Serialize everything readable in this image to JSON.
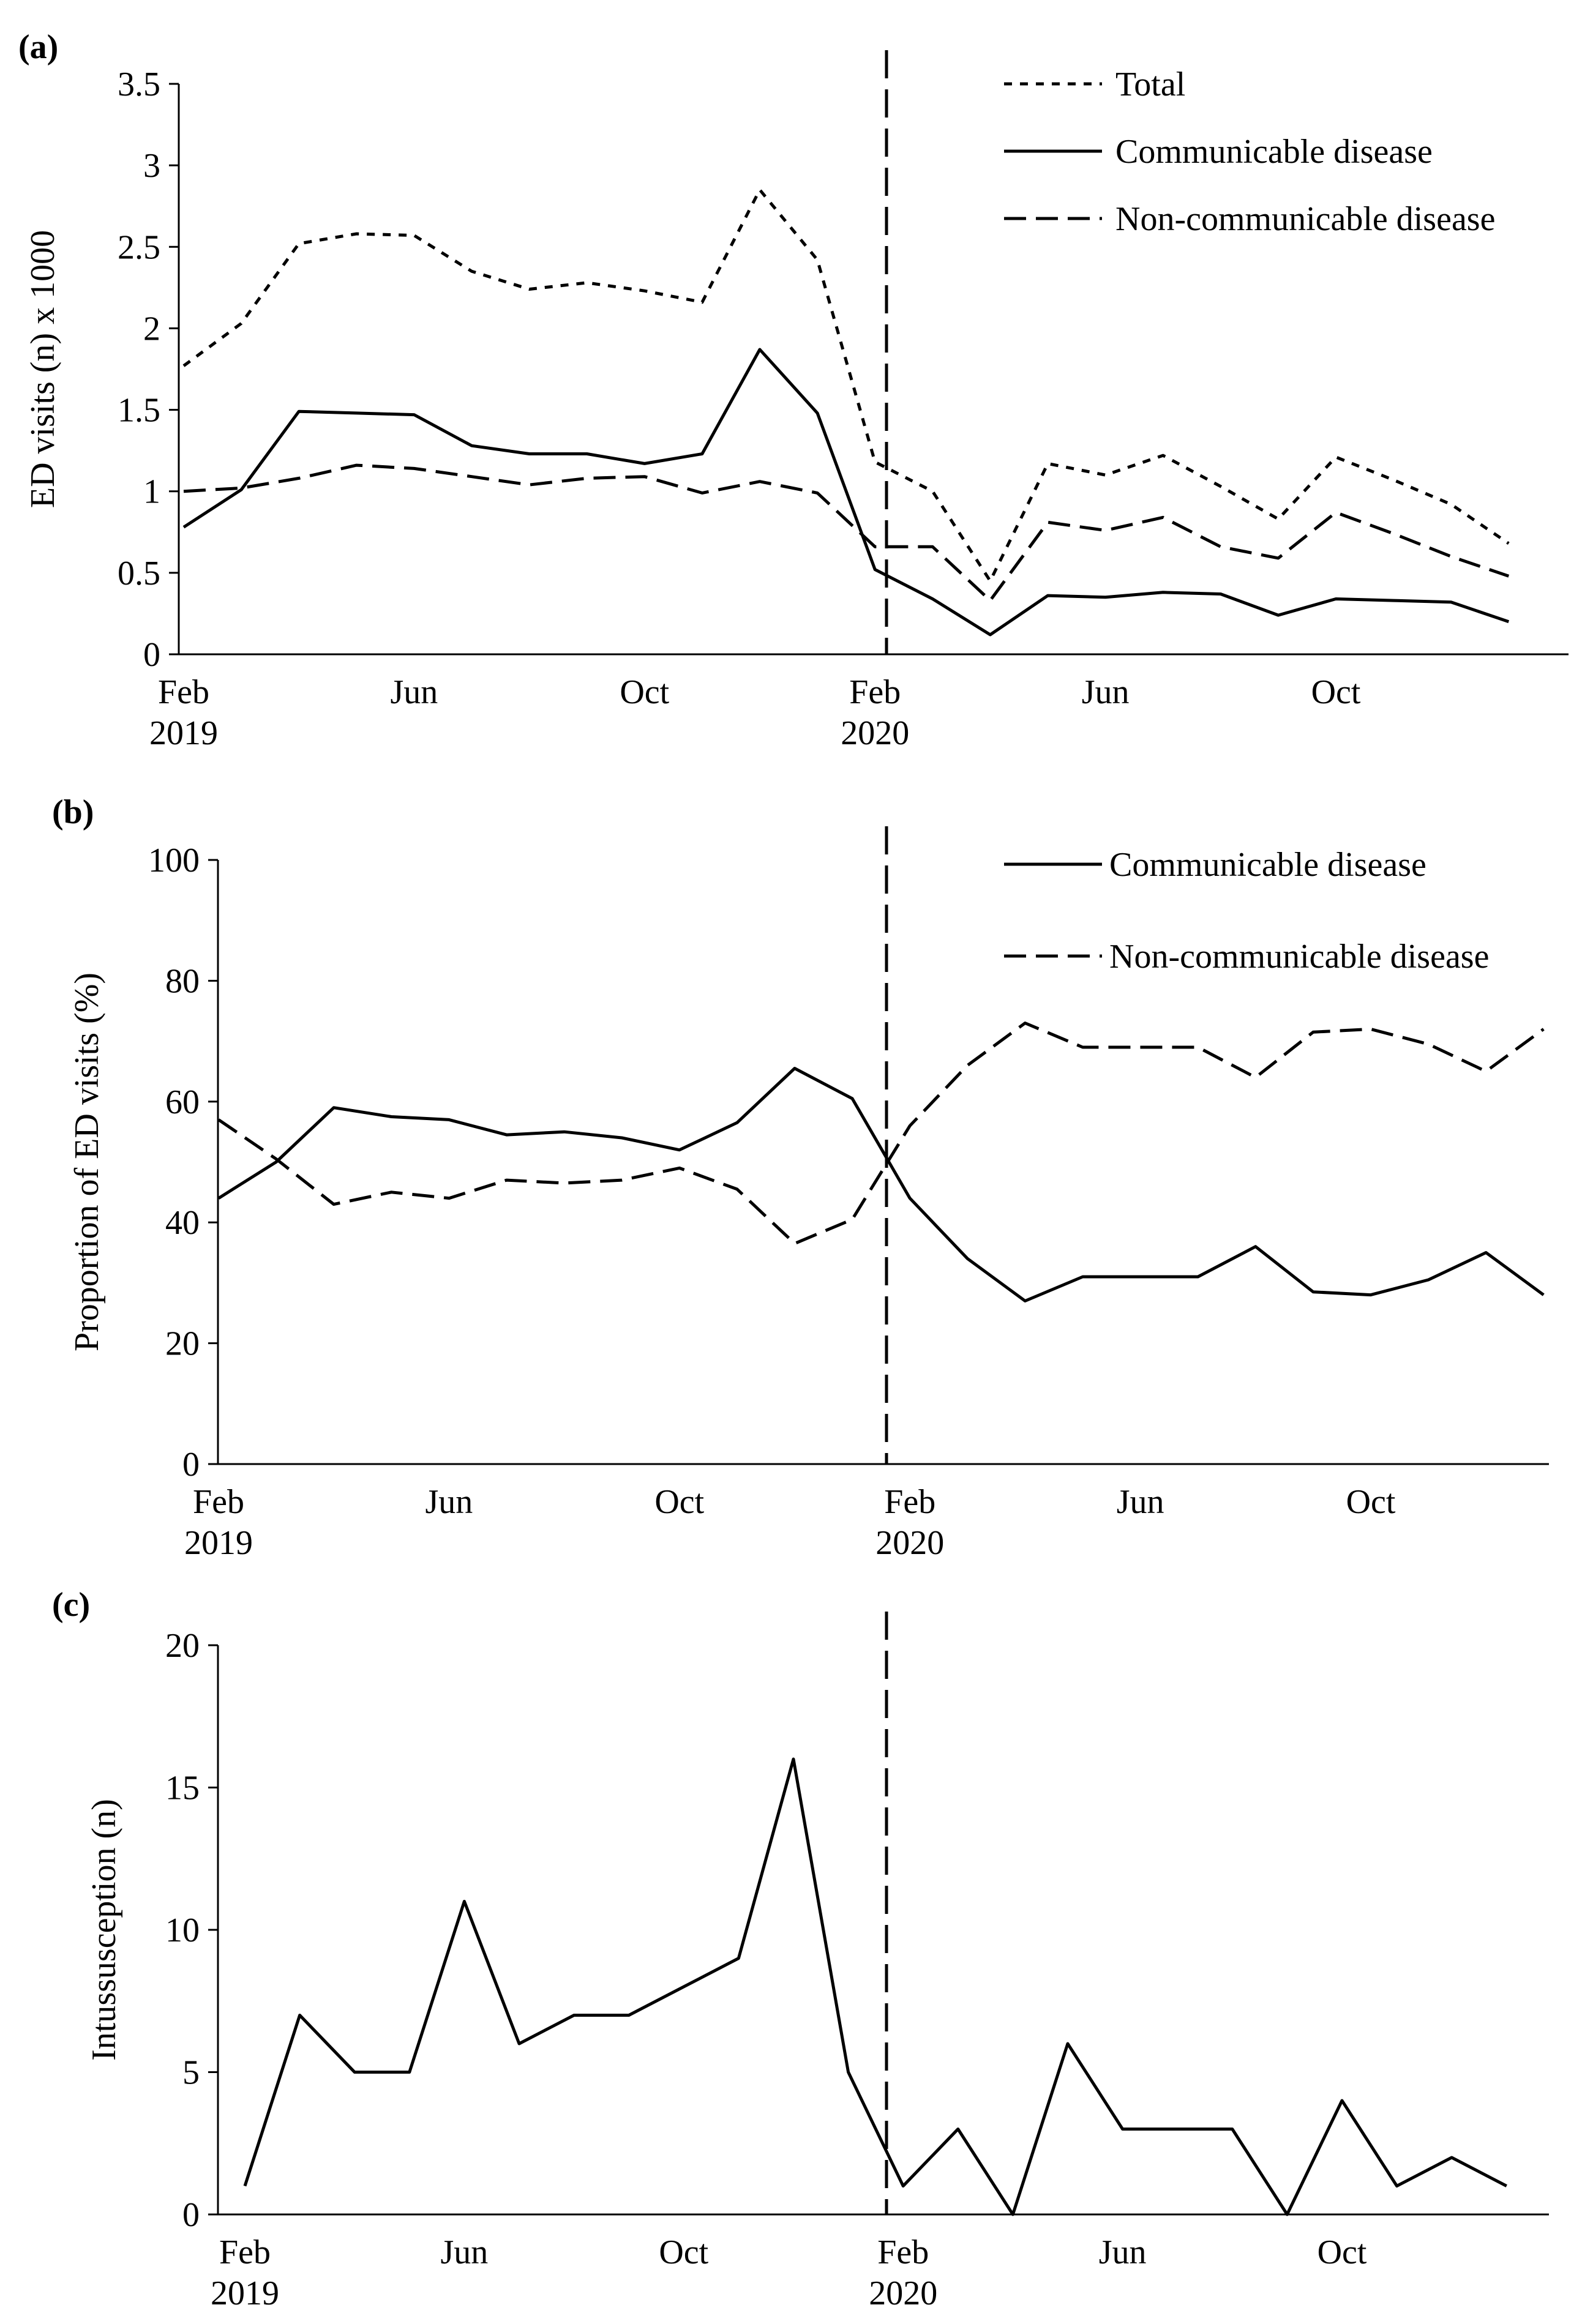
{
  "figure": {
    "colors": {
      "line": "#000000",
      "background": "#ffffff"
    }
  },
  "chart_data": [
    {
      "type": "line",
      "panel_label": "(a)",
      "ylabel": "ED visits (n) x 1000",
      "ylim": [
        0,
        3.5
      ],
      "yticks": [
        0,
        0.5,
        1,
        1.5,
        2,
        2.5,
        3,
        3.5
      ],
      "ytick_labels": [
        "0",
        "0.5",
        "1",
        "1.5",
        "2",
        "2.5",
        "3",
        "3.5"
      ],
      "x": [
        0,
        1,
        2,
        3,
        4,
        5,
        6,
        7,
        8,
        9,
        10,
        11,
        12,
        13,
        14,
        15,
        16,
        17,
        18,
        19,
        20,
        21,
        22,
        23
      ],
      "xticks": [
        {
          "x": 0,
          "month": "Feb",
          "year": "2019"
        },
        {
          "x": 4,
          "month": "Jun",
          "year": ""
        },
        {
          "x": 8,
          "month": "Oct",
          "year": ""
        },
        {
          "x": 12,
          "month": "Feb",
          "year": "2020"
        },
        {
          "x": 16,
          "month": "Jun",
          "year": ""
        },
        {
          "x": 20,
          "month": "Oct",
          "year": ""
        }
      ],
      "vline_x": 12,
      "legend_position": "top-right",
      "series": [
        {
          "name": "Total",
          "style": "dotted",
          "values": [
            1.77,
            2.03,
            2.52,
            2.58,
            2.57,
            2.35,
            2.24,
            2.28,
            2.23,
            2.16,
            2.85,
            2.42,
            1.18,
            1.0,
            0.45,
            1.17,
            1.1,
            1.22,
            1.03,
            0.83,
            1.21,
            1.07,
            0.92,
            0.68
          ]
        },
        {
          "name": "Communicable disease",
          "style": "solid",
          "values": [
            0.78,
            1.01,
            1.49,
            1.48,
            1.47,
            1.28,
            1.23,
            1.23,
            1.17,
            1.23,
            1.87,
            1.48,
            0.52,
            0.34,
            0.12,
            0.36,
            0.35,
            0.38,
            0.37,
            0.24,
            0.34,
            0.33,
            0.32,
            0.2
          ]
        },
        {
          "name": "Non-communicable disease",
          "style": "dashed",
          "values": [
            1.0,
            1.02,
            1.08,
            1.16,
            1.14,
            1.09,
            1.04,
            1.08,
            1.09,
            0.99,
            1.06,
            0.99,
            0.66,
            0.66,
            0.33,
            0.81,
            0.76,
            0.84,
            0.66,
            0.59,
            0.87,
            0.74,
            0.6,
            0.48
          ]
        }
      ]
    },
    {
      "type": "line",
      "panel_label": "(b)",
      "ylabel": "Proportion of ED visits (%)",
      "ylim": [
        0,
        100
      ],
      "yticks": [
        0,
        20,
        40,
        60,
        80,
        100
      ],
      "ytick_labels": [
        "0",
        "20",
        "40",
        "60",
        "80",
        "100"
      ],
      "x": [
        0,
        1,
        2,
        3,
        4,
        5,
        6,
        7,
        8,
        9,
        10,
        11,
        12,
        13,
        14,
        15,
        16,
        17,
        18,
        19,
        20,
        21,
        22,
        23
      ],
      "xticks": [
        {
          "x": 0,
          "month": "Feb",
          "year": "2019"
        },
        {
          "x": 4,
          "month": "Jun",
          "year": ""
        },
        {
          "x": 8,
          "month": "Oct",
          "year": ""
        },
        {
          "x": 12,
          "month": "Feb",
          "year": "2020"
        },
        {
          "x": 16,
          "month": "Jun",
          "year": ""
        },
        {
          "x": 20,
          "month": "Oct",
          "year": ""
        }
      ],
      "vline_x": 12,
      "legend_position": "top-right",
      "series": [
        {
          "name": "Communicable disease",
          "style": "solid",
          "values": [
            44,
            50,
            59,
            57.5,
            57,
            54.5,
            55,
            54,
            52,
            56.5,
            65.5,
            60.5,
            44,
            34,
            27,
            31,
            31,
            31,
            36,
            28.5,
            28,
            30.5,
            35,
            28
          ]
        },
        {
          "name": "Non-communicable disease",
          "style": "dashed",
          "values": [
            57,
            50.5,
            43,
            45,
            44,
            47,
            46.5,
            47,
            49,
            45.5,
            36.5,
            40.5,
            56,
            66,
            73,
            69,
            69,
            69,
            64,
            71.5,
            72,
            69.5,
            65,
            72
          ]
        }
      ]
    },
    {
      "type": "line",
      "panel_label": "(c)",
      "ylabel": "Intussusception (n)",
      "ylim": [
        0,
        20
      ],
      "yticks": [
        0,
        5,
        10,
        15,
        20
      ],
      "ytick_labels": [
        "0",
        "5",
        "10",
        "15",
        "20"
      ],
      "x": [
        0,
        1,
        2,
        3,
        4,
        5,
        6,
        7,
        8,
        9,
        10,
        11,
        12,
        13,
        14,
        15,
        16,
        17,
        18,
        19,
        20,
        21,
        22,
        23
      ],
      "xticks": [
        {
          "x": 0,
          "month": "Feb",
          "year": "2019"
        },
        {
          "x": 4,
          "month": "Jun",
          "year": ""
        },
        {
          "x": 8,
          "month": "Oct",
          "year": ""
        },
        {
          "x": 12,
          "month": "Feb",
          "year": "2020"
        },
        {
          "x": 16,
          "month": "Jun",
          "year": ""
        },
        {
          "x": 20,
          "month": "Oct",
          "year": ""
        }
      ],
      "vline_x": 12,
      "legend_position": "none",
      "series": [
        {
          "name": "Intussusception",
          "style": "solid",
          "values": [
            1,
            7,
            5,
            5,
            11,
            6,
            7,
            7,
            8,
            9,
            16,
            5,
            1,
            3,
            0,
            6,
            3,
            3,
            3,
            0,
            4,
            1,
            2,
            1
          ]
        }
      ]
    }
  ]
}
